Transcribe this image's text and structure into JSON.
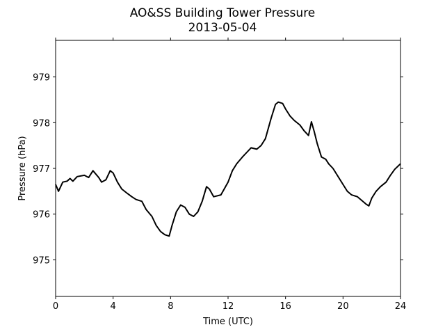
{
  "chart_data": {
    "type": "line",
    "title": "AO&SS Building Tower Pressure",
    "subtitle": "2013-05-04",
    "xlabel": "Time (UTC)",
    "ylabel": "Pressure (hPa)",
    "xlim": [
      0,
      24
    ],
    "ylim": [
      974.2,
      979.8
    ],
    "xticks": [
      0,
      4,
      8,
      12,
      16,
      20,
      24
    ],
    "yticks": [
      975,
      976,
      977,
      978,
      979
    ],
    "grid": false,
    "legend": "none",
    "line_color": "#000000",
    "series": [
      {
        "x": [
          0,
          0.2,
          0.5,
          0.8,
          1.0,
          1.2,
          1.5,
          2.0,
          2.3,
          2.6,
          3.0,
          3.2,
          3.5,
          3.8,
          4.0,
          4.3,
          4.6,
          5.0,
          5.3,
          5.6,
          6.0,
          6.3,
          6.7,
          7.0,
          7.3,
          7.6,
          7.9,
          8.1,
          8.4,
          8.7,
          9.0,
          9.3,
          9.6,
          9.9,
          10.2,
          10.5,
          10.7,
          11.0,
          11.5,
          12.0,
          12.3,
          12.6,
          13.0,
          13.3,
          13.6,
          14.0,
          14.3,
          14.6,
          15.0,
          15.3,
          15.5,
          15.8,
          16.0,
          16.3,
          16.6,
          17.0,
          17.3,
          17.6,
          17.8,
          18.0,
          18.2,
          18.5,
          18.8,
          19.0,
          19.3,
          19.6,
          20.0,
          20.3,
          20.6,
          21.0,
          21.3,
          21.6,
          21.8,
          22.0,
          22.3,
          22.6,
          23.0,
          23.3,
          23.6,
          24.0
        ],
        "values": [
          976.65,
          976.5,
          976.7,
          976.72,
          976.78,
          976.72,
          976.82,
          976.85,
          976.8,
          976.95,
          976.8,
          976.7,
          976.75,
          976.95,
          976.9,
          976.7,
          976.55,
          976.45,
          976.38,
          976.32,
          976.28,
          976.1,
          975.95,
          975.75,
          975.62,
          975.55,
          975.52,
          975.75,
          976.05,
          976.2,
          976.15,
          976.0,
          975.95,
          976.05,
          976.28,
          976.6,
          976.55,
          976.38,
          976.42,
          976.7,
          976.95,
          977.1,
          977.25,
          977.35,
          977.45,
          977.42,
          977.5,
          977.65,
          978.1,
          978.4,
          978.45,
          978.42,
          978.3,
          978.15,
          978.05,
          977.95,
          977.82,
          977.72,
          978.02,
          977.8,
          977.55,
          977.25,
          977.2,
          977.1,
          977.0,
          976.85,
          976.65,
          976.5,
          976.42,
          976.38,
          976.3,
          976.22,
          976.18,
          976.35,
          976.5,
          976.6,
          976.7,
          976.85,
          976.98,
          977.1
        ]
      }
    ]
  }
}
